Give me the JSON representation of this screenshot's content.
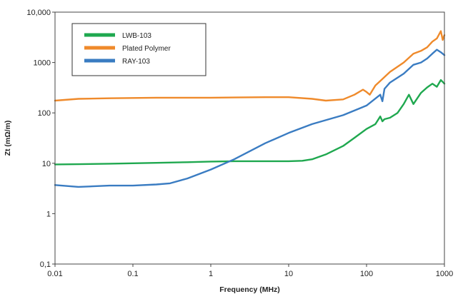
{
  "chart_data": {
    "type": "line",
    "title": "",
    "xlabel": "Frequency (MHz)",
    "ylabel": "Zt (mΩ/m)",
    "xscale": "log",
    "yscale": "log",
    "xlim": [
      0.01,
      1000
    ],
    "ylim": [
      0.1,
      10000
    ],
    "x_ticks": [
      0.01,
      0.1,
      1,
      10,
      100,
      1000
    ],
    "x_tick_labels": [
      "0.01",
      "0.1",
      "1",
      "10",
      "100",
      "1000"
    ],
    "y_ticks": [
      0.1,
      1,
      10,
      100,
      1000,
      10000
    ],
    "y_tick_labels": [
      "0,1",
      "1",
      "10",
      "100",
      "1000",
      "10,000"
    ],
    "grid": false,
    "legend_position": "top-left",
    "series": [
      {
        "name": "LWB-103",
        "color": "#1fa84f",
        "x": [
          0.01,
          0.02,
          0.05,
          0.1,
          0.2,
          0.5,
          1,
          2,
          5,
          10,
          15,
          20,
          30,
          50,
          70,
          100,
          130,
          150,
          160,
          170,
          200,
          250,
          300,
          350,
          400,
          500,
          600,
          700,
          800,
          900,
          1000
        ],
        "y": [
          9.5,
          9.6,
          9.8,
          10,
          10.2,
          10.5,
          10.8,
          11,
          11,
          11,
          11.2,
          12,
          15,
          22,
          32,
          48,
          60,
          85,
          68,
          75,
          80,
          100,
          150,
          230,
          150,
          250,
          320,
          380,
          330,
          450,
          380
        ]
      },
      {
        "name": "Plated Polymer",
        "color": "#ef8a2b",
        "x": [
          0.01,
          0.02,
          0.05,
          0.1,
          0.2,
          0.5,
          1,
          2,
          5,
          10,
          20,
          30,
          50,
          70,
          90,
          100,
          110,
          130,
          150,
          200,
          300,
          400,
          500,
          600,
          700,
          800,
          900,
          950,
          1000
        ],
        "y": [
          175,
          190,
          195,
          198,
          200,
          200,
          200,
          202,
          205,
          205,
          190,
          175,
          185,
          230,
          290,
          260,
          230,
          350,
          430,
          650,
          1000,
          1500,
          1700,
          2000,
          2600,
          3000,
          4200,
          2800,
          3500
        ]
      },
      {
        "name": "RAY-103",
        "color": "#3a7cc2",
        "x": [
          0.01,
          0.02,
          0.05,
          0.1,
          0.2,
          0.3,
          0.5,
          1,
          2,
          5,
          10,
          20,
          50,
          100,
          150,
          160,
          170,
          200,
          300,
          400,
          500,
          600,
          700,
          800,
          900,
          1000
        ],
        "y": [
          3.7,
          3.4,
          3.6,
          3.6,
          3.8,
          4.0,
          5.0,
          7.5,
          12,
          25,
          40,
          60,
          90,
          140,
          230,
          170,
          300,
          400,
          600,
          900,
          1000,
          1200,
          1500,
          1800,
          1600,
          1400
        ]
      }
    ]
  }
}
